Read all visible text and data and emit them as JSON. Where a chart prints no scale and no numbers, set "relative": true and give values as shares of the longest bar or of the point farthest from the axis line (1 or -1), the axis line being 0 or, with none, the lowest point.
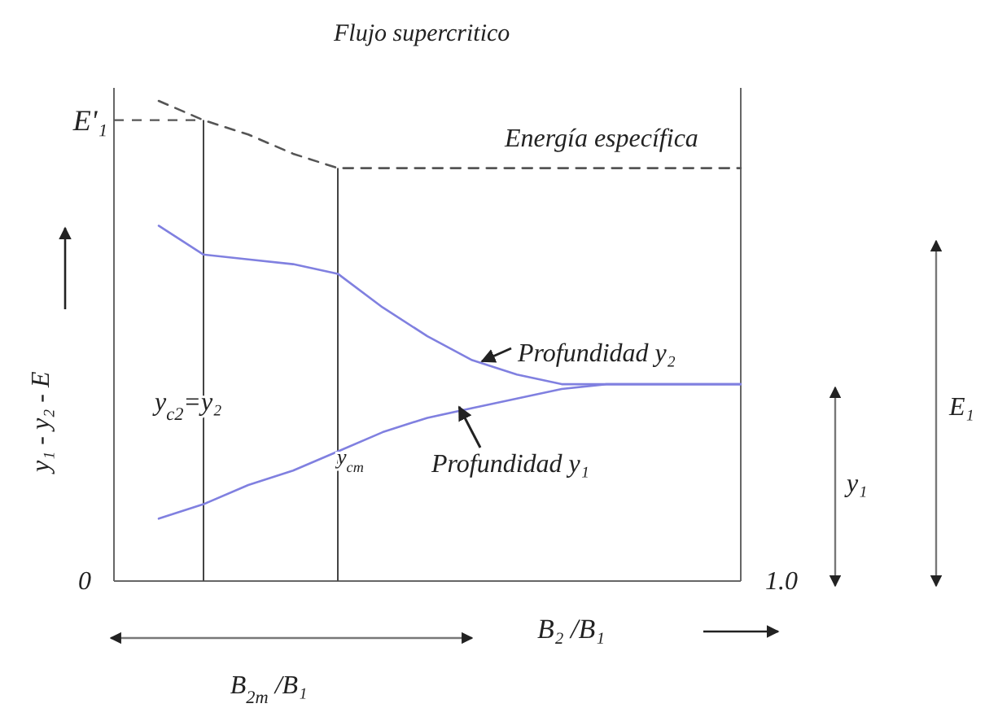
{
  "chart_data": {
    "type": "line",
    "title": "Flujo supercritico",
    "xlabel": "B₂ /B₁",
    "ylabel": "y₁ - y₂ - E",
    "relative": true,
    "legend": false,
    "grid": false,
    "marker": "none",
    "categories": [
      null,
      null,
      null,
      null,
      null,
      null,
      null,
      null,
      null,
      null,
      null,
      null,
      null,
      null,
      null
    ],
    "series": [
      {
        "name": "Energía específica",
        "color": "#555555",
        "line_style": "dashed",
        "values": [
          null,
          1.0,
          0.96,
          0.93,
          0.89,
          0.86,
          0.86,
          0.86,
          0.86,
          0.86,
          0.86,
          0.86,
          0.86,
          0.86,
          0.86
        ]
      },
      {
        "name": "Profundidad y₂",
        "color": "#8080e0",
        "line_style": "solid",
        "values": [
          null,
          0.74,
          0.68,
          0.67,
          0.66,
          0.64,
          0.57,
          0.51,
          0.46,
          0.43,
          0.41,
          0.41,
          0.41,
          0.41,
          0.41
        ]
      },
      {
        "name": "Profundidad y₁",
        "color": "#8080e0",
        "line_style": "solid",
        "values": [
          null,
          0.13,
          0.16,
          0.2,
          0.23,
          0.27,
          0.31,
          0.34,
          0.36,
          0.38,
          0.4,
          0.41,
          0.41,
          0.41,
          0.41
        ]
      }
    ],
    "ref_lines": [
      {
        "axis": "y",
        "value": 0.96,
        "label": "E'₁",
        "line_style": "dashed",
        "color": "#555555"
      }
    ],
    "annotations": [
      "y$_{c2}$=y₂",
      "y$_{cm}$",
      "0",
      "1.0",
      "y₁",
      "E₁",
      "B$_{2m}$ /B₁"
    ]
  }
}
